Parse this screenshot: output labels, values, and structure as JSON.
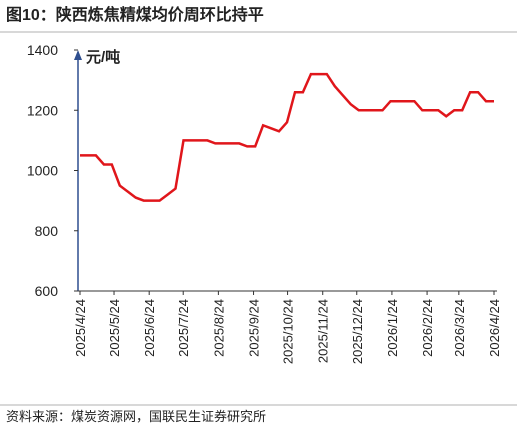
{
  "chart_data": {
    "type": "line",
    "title": "图10：陕西炼焦精煤均价周环比持平",
    "y_label": "元/吨",
    "source": "资料来源：煤炭资源网，国联民生证券研究所",
    "xticks": [
      "2025/4/24",
      "2025/5/24",
      "2025/6/24",
      "2025/7/24",
      "2025/8/24",
      "2025/9/24",
      "2025/10/24",
      "2025/11/24",
      "2025/12/24",
      "2026/1/24",
      "2026/2/24",
      "2026/3/24",
      "2026/4/24"
    ],
    "ylim": [
      600,
      1400
    ],
    "yticks": [
      600,
      800,
      1000,
      1200,
      1400
    ],
    "series": [
      {
        "color": "#e0161b",
        "values": [
          1050,
          1050,
          1050,
          1020,
          1020,
          950,
          930,
          910,
          900,
          900,
          900,
          920,
          940,
          1100,
          1100,
          1100,
          1100,
          1090,
          1090,
          1090,
          1090,
          1080,
          1080,
          1150,
          1140,
          1130,
          1160,
          1260,
          1260,
          1320,
          1320,
          1320,
          1280,
          1250,
          1220,
          1200,
          1200,
          1200,
          1200,
          1230,
          1230,
          1230,
          1230,
          1200,
          1200,
          1200,
          1180,
          1200,
          1200,
          1260,
          1260,
          1230,
          1230
        ]
      }
    ]
  }
}
